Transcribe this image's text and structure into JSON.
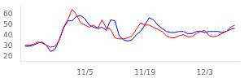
{
  "chart_data": {
    "type": "line",
    "x": [
      0,
      1,
      2,
      3,
      4,
      5,
      6,
      7,
      8,
      9,
      10,
      11,
      12,
      13,
      14,
      15,
      16,
      17,
      18,
      19,
      20,
      21,
      22,
      23,
      24,
      25,
      26,
      27,
      28,
      29,
      30,
      31,
      32,
      33,
      34,
      35,
      36,
      37,
      38,
      39,
      40,
      41,
      42,
      43,
      44,
      45,
      46,
      47,
      48,
      49
    ],
    "series": [
      {
        "color": "#ff0000",
        "values": [
          31,
          31,
          32,
          34,
          33,
          31,
          29,
          30,
          36,
          48,
          55,
          65,
          60,
          52,
          50,
          48,
          50,
          47,
          55,
          47,
          46,
          38,
          37,
          37,
          38,
          40,
          46,
          52,
          50,
          50,
          48,
          46,
          44,
          40,
          38,
          38,
          40,
          41,
          39,
          39,
          42,
          44,
          45,
          40,
          39,
          40,
          42,
          44,
          48,
          50
        ]
      },
      {
        "color": "#0000ff",
        "values": [
          30,
          30,
          31,
          33,
          34,
          31,
          25,
          27,
          36,
          47,
          54,
          54,
          58,
          59,
          56,
          50,
          48,
          47,
          48,
          45,
          55,
          54,
          40,
          36,
          35,
          36,
          41,
          44,
          50,
          57,
          55,
          50,
          47,
          44,
          43,
          43,
          44,
          44,
          42,
          42,
          44,
          44,
          43,
          44,
          44,
          44,
          43,
          44,
          46,
          47
        ]
      }
    ],
    "xlim": [
      -1,
      50
    ],
    "xticks": [
      {
        "value": 14,
        "label": "11/5"
      },
      {
        "value": 28,
        "label": "11/19"
      },
      {
        "value": 42,
        "label": "12/3"
      }
    ],
    "ylim": [
      16,
      68
    ],
    "yticks": [
      20,
      30,
      40,
      50,
      60
    ],
    "grid": false
  }
}
